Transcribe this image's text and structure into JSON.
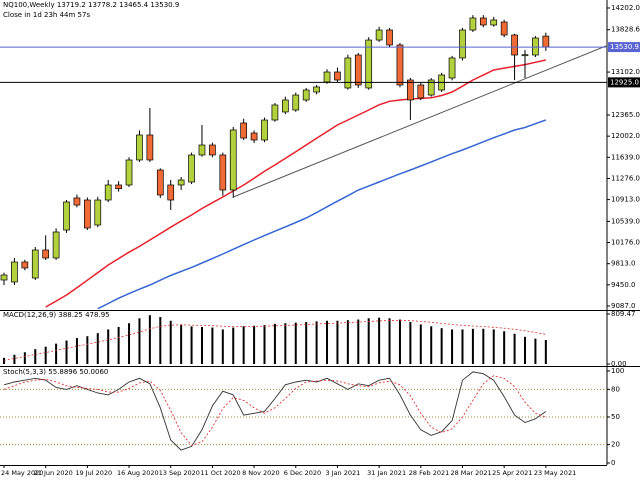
{
  "chart_data": [
    {
      "type": "candlestick",
      "title": "NQ100,Weekly  13719.2 13778.2 13465.4 13530.9",
      "subtitle": "Close in 1d 23h 44m 57s",
      "categories": [
        "24 May 2020",
        null,
        null,
        null,
        "21 Jun 2020",
        null,
        null,
        null,
        "19 Jul 2020",
        null,
        null,
        null,
        "16 Aug 2020",
        null,
        null,
        null,
        "13 Sep 2020",
        null,
        null,
        null,
        "11 Oct 2020",
        null,
        null,
        null,
        "8 Nov 2020",
        null,
        null,
        null,
        "6 Dec 2020",
        null,
        null,
        null,
        "3 Jan 2021",
        null,
        null,
        null,
        "31 Jan 2021",
        null,
        null,
        null,
        "28 Feb 2021",
        null,
        null,
        null,
        "28 Mar 2021",
        null,
        null,
        null,
        "25 Apr 2021",
        null,
        null,
        null,
        "23 May 2021"
      ],
      "open": [
        9533,
        9499,
        9842,
        9567,
        10048,
        9911,
        10391,
        10941,
        10906,
        10477,
        10906,
        11164,
        11164,
        11593,
        12022,
        11421,
        11164,
        11164,
        11215,
        11679,
        11850,
        11679,
        11078,
        12228,
        12056,
        11936,
        12279,
        12417,
        12451,
        12623,
        12760,
        12932,
        13103,
        12829,
        13395,
        12829,
        13652,
        13824,
        13567,
        12966,
        12880,
        12708,
        12794,
        13000,
        13344,
        13824,
        14030,
        13910,
        13961,
        13738,
        13395,
        13395,
        13719.2
      ],
      "high": [
        9660,
        9911,
        9880,
        10100,
        10300,
        10420,
        10906,
        11000,
        10950,
        10960,
        11250,
        11230,
        11640,
        12100,
        12485,
        11450,
        11249,
        11300,
        11720,
        12194,
        11890,
        11720,
        12160,
        12300,
        12100,
        12320,
        12570,
        12680,
        12750,
        12830,
        12880,
        13150,
        13180,
        13400,
        13430,
        13700,
        13880,
        13860,
        13600,
        13000,
        12930,
        13000,
        13090,
        13380,
        13860,
        14080,
        14080,
        14050,
        14000,
        13760,
        13480,
        13720,
        13778.2
      ],
      "low": [
        9447,
        9447,
        9700,
        9533,
        9876,
        9876,
        10340,
        10780,
        10391,
        10440,
        10870,
        11050,
        11130,
        11560,
        11560,
        10941,
        10735,
        11078,
        11180,
        11650,
        11640,
        10980,
        10941,
        11936,
        11884,
        11900,
        12250,
        12380,
        12420,
        12590,
        12720,
        12900,
        12930,
        12800,
        12830,
        12800,
        13620,
        13530,
        12840,
        12279,
        12620,
        12680,
        12760,
        12960,
        13300,
        13790,
        13870,
        13880,
        13700,
        12966,
        13000,
        13360,
        13465.4
      ],
      "close": [
        9619,
        9842,
        9739,
        10048,
        9911,
        10357,
        10872,
        10820,
        10426,
        10906,
        11164,
        11100,
        11593,
        12022,
        11593,
        10992,
        10906,
        11249,
        11679,
        11850,
        11679,
        11078,
        12108,
        11970,
        11936,
        12279,
        12537,
        12623,
        12708,
        12794,
        12846,
        13103,
        12966,
        13344,
        12880,
        13652,
        13824,
        13567,
        12880,
        12623,
        12657,
        12966,
        13052,
        13344,
        13824,
        14030,
        13910,
        13996,
        13738,
        13395,
        13400,
        13687,
        13530.9
      ],
      "colors": {
        "up": "#b3d13c",
        "down": "#ef6a35"
      },
      "overlays": [
        {
          "color": "#e8202a",
          "values": [
            null,
            null,
            null,
            null,
            9070,
            9170,
            9275,
            9400,
            9530,
            9660,
            9790,
            9900,
            10010,
            10110,
            10220,
            10330,
            10440,
            10545,
            10649,
            10760,
            10860,
            10958,
            11060,
            11164,
            11280,
            11400,
            11507,
            11620,
            11735,
            11850,
            11965,
            12080,
            12194,
            12280,
            12365,
            12451,
            12540,
            12600,
            12623,
            12640,
            12650,
            12660,
            12700,
            12760,
            12860,
            12966,
            13050,
            13138,
            13170,
            13200,
            13230,
            13270,
            13309
          ]
        },
        {
          "color": "#3466d6",
          "values": [
            null,
            null,
            null,
            null,
            null,
            null,
            null,
            null,
            null,
            9040,
            9130,
            9220,
            9300,
            9375,
            9447,
            9530,
            9610,
            9680,
            9750,
            9825,
            9900,
            9980,
            10060,
            10140,
            10220,
            10295,
            10370,
            10445,
            10520,
            10597,
            10690,
            10790,
            10885,
            10980,
            11078,
            11145,
            11215,
            11285,
            11355,
            11421,
            11490,
            11560,
            11630,
            11700,
            11765,
            11835,
            11905,
            11975,
            12040,
            12108,
            12150,
            12215,
            12279
          ]
        }
      ],
      "hlines": [
        {
          "value": 13530.9,
          "label": "13530.9",
          "color": "#5a64d2"
        },
        {
          "value": 12925.0,
          "label": "12925.0",
          "color": "#000000"
        }
      ],
      "trendline": {
        "x": [
          22,
          58
        ],
        "y": [
          10958,
          13567
        ],
        "color": "#555555"
      },
      "ylim": [
        9018,
        14339
      ],
      "yticks": [
        {
          "value": 14202,
          "label": "14202.0"
        },
        {
          "value": 13828.6,
          "label": "13828.6"
        },
        {
          "value": 13102,
          "label": "13102.0"
        },
        {
          "value": 12365,
          "label": "12365.0"
        },
        {
          "value": 12002,
          "label": "12002.0"
        },
        {
          "value": 11639,
          "label": "11639.0"
        },
        {
          "value": 11276,
          "label": "11276.0"
        },
        {
          "value": 10913,
          "label": "10913.0"
        },
        {
          "value": 10539,
          "label": "10539.0"
        },
        {
          "value": 10176,
          "label": "10176.0"
        },
        {
          "value": 9813,
          "label": "9813.0"
        },
        {
          "value": 9450,
          "label": "9450.0"
        },
        {
          "value": 9087,
          "label": "9087.0"
        }
      ]
    },
    {
      "type": "bar",
      "title": "MACD(12,26,9) 388.25 478.95",
      "series": [
        {
          "type": "bar",
          "color": "#000000",
          "values": [
            100,
            150,
            190,
            240,
            280,
            330,
            380,
            420,
            450,
            500,
            560,
            600,
            660,
            740,
            790,
            760,
            700,
            640,
            610,
            600,
            590,
            560,
            590,
            610,
            620,
            630,
            650,
            660,
            670,
            680,
            690,
            700,
            700,
            710,
            720,
            740,
            750,
            740,
            720,
            680,
            640,
            610,
            580,
            560,
            560,
            570,
            570,
            560,
            530,
            490,
            440,
            410,
            388.25
          ]
        },
        {
          "type": "line",
          "color": "#e03030",
          "values": [
            60,
            90,
            120,
            155,
            185,
            220,
            255,
            290,
            320,
            355,
            390,
            430,
            470,
            520,
            570,
            610,
            630,
            635,
            630,
            625,
            620,
            610,
            605,
            605,
            608,
            612,
            618,
            625,
            632,
            640,
            648,
            655,
            662,
            670,
            678,
            688,
            698,
            705,
            708,
            702,
            690,
            675,
            658,
            640,
            625,
            615,
            605,
            595,
            580,
            562,
            538,
            510,
            478.95
          ]
        }
      ],
      "ylim": [
        -32,
        858
      ],
      "yticks": [
        809.47,
        {
          "value": 0,
          "label": "0.00"
        }
      ]
    },
    {
      "type": "line",
      "title": "Stoch(5,3,3) 55.8896 50.0060",
      "series": [
        {
          "color": "#333333",
          "values": [
            85,
            88,
            90,
            92,
            90,
            82,
            80,
            84,
            80,
            76,
            74,
            80,
            88,
            92,
            86,
            60,
            25,
            14,
            18,
            36,
            62,
            78,
            74,
            52,
            54,
            56,
            70,
            85,
            88,
            90,
            88,
            92,
            86,
            80,
            86,
            84,
            90,
            92,
            74,
            52,
            36,
            30,
            34,
            46,
            90,
            99,
            97,
            90,
            72,
            52,
            44,
            48,
            55.8896
          ]
        },
        {
          "color": "#e03030",
          "dashed": true,
          "values": [
            80,
            84,
            88,
            90,
            91,
            88,
            84,
            82,
            81,
            80,
            77,
            77,
            81,
            87,
            89,
            79,
            57,
            33,
            19,
            23,
            39,
            59,
            71,
            68,
            60,
            54,
            60,
            70,
            81,
            88,
            89,
            90,
            89,
            86,
            84,
            83,
            87,
            89,
            85,
            73,
            54,
            39,
            33,
            37,
            50,
            68,
            86,
            95,
            92,
            83,
            66,
            54,
            50.006
          ]
        }
      ],
      "levels": [
        20,
        50,
        80
      ],
      "ylim": [
        -2.2,
        104.3
      ],
      "yticks": [
        100,
        80,
        50,
        20,
        0
      ]
    }
  ]
}
